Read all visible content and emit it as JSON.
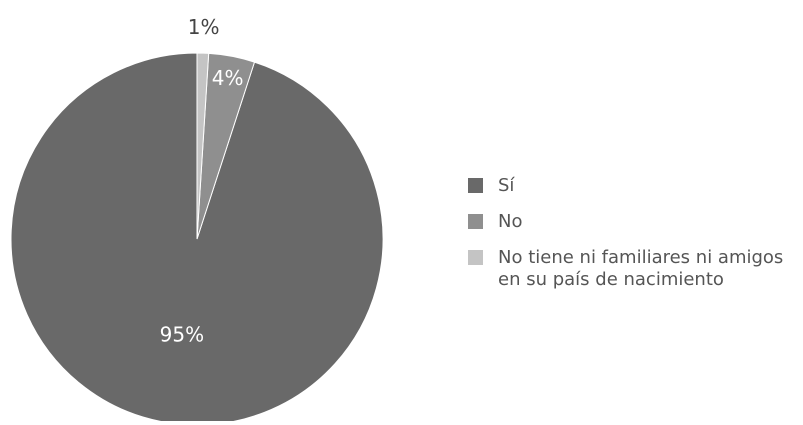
{
  "chart_data": {
    "type": "pie",
    "title": "",
    "slices": [
      {
        "label": "Sí",
        "value": 95,
        "display": "95%",
        "color": "#696969"
      },
      {
        "label": "No",
        "value": 4,
        "display": "4%",
        "color": "#8f8f8f"
      },
      {
        "label": "No tiene ni familiares ni amigos en su país de nacimiento",
        "label_lines": [
          "No tiene ni familiares ni amigos",
          "en su país de nacimiento"
        ],
        "value": 1,
        "display": "1%",
        "color": "#c4c4c4"
      }
    ],
    "legend_position": "right",
    "start_angle_deg": 0,
    "direction": "counterclockwise",
    "label_color_inside": "#ffffff",
    "label_color_outside": "#444444"
  }
}
